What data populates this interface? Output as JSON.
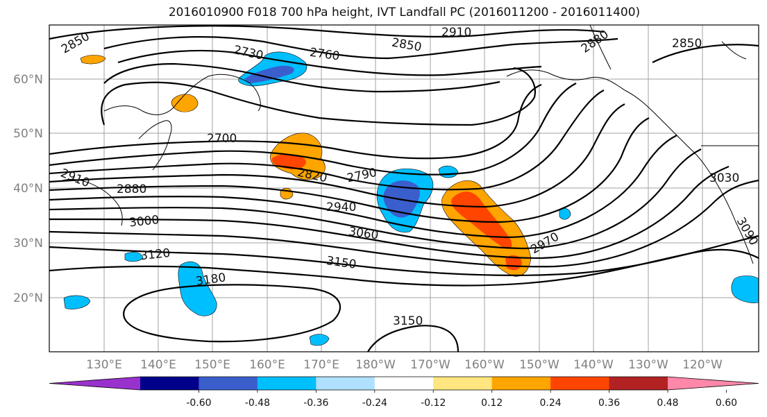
{
  "title": "2016010900 F018 700 hPa height, IVT Landfall PC (2016011200 - 2016011400)",
  "lat_labels": [
    "60°N",
    "50°N",
    "40°N",
    "30°N",
    "20°N"
  ],
  "lon_labels": [
    "130°E",
    "140°E",
    "150°E",
    "160°E",
    "170°E",
    "180°W",
    "170°W",
    "160°W",
    "150°W",
    "140°W",
    "130°W",
    "120°W"
  ],
  "contour_labels": [
    "2850",
    "2730",
    "2760",
    "2910",
    "2850",
    "2880",
    "2850",
    "2700",
    "2820",
    "2790",
    "2910",
    "2880",
    "3000",
    "2940",
    "3060",
    "2970",
    "3030",
    "3090",
    "3120",
    "3150",
    "3180",
    "3150"
  ],
  "colorbar": {
    "colors": [
      "#9932cc",
      "#00008b",
      "#3a5fcd",
      "#00bfff",
      "#b0e0ff",
      "#ffffff",
      "#ffe680",
      "#ffa500",
      "#ff4500",
      "#b22222",
      "#ff88aa"
    ],
    "tick_labels": [
      "-0.60",
      "-0.48",
      "-0.36",
      "-0.24",
      "-0.12",
      "0.12",
      "0.24",
      "0.36",
      "0.48",
      "0.60"
    ]
  }
}
